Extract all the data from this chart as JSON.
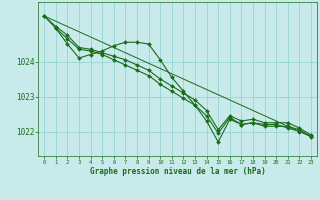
{
  "xlabel": "Graphe pression niveau de la mer (hPa)",
  "background_color": "#c8eaea",
  "grid_color": "#8ecece",
  "line_color": "#1a6b1a",
  "ylim": [
    1021.3,
    1025.7
  ],
  "xlim": [
    -0.5,
    23.5
  ],
  "yticks": [
    1022,
    1023,
    1024
  ],
  "xticks": [
    0,
    1,
    2,
    3,
    4,
    5,
    6,
    7,
    8,
    9,
    10,
    11,
    12,
    13,
    14,
    15,
    16,
    17,
    18,
    19,
    20,
    21,
    22,
    23
  ],
  "series": [
    {
      "x": [
        0,
        1,
        2,
        3,
        4,
        5,
        6,
        7,
        8,
        9,
        10,
        11,
        12,
        13,
        14,
        15,
        16,
        17,
        18,
        19,
        20,
        21,
        22,
        23
      ],
      "y": [
        1025.3,
        1025.0,
        1024.75,
        1024.4,
        1024.35,
        1024.25,
        1024.15,
        1024.05,
        1023.9,
        1023.75,
        1023.5,
        1023.3,
        1023.1,
        1022.9,
        1022.6,
        1022.05,
        1022.45,
        1022.3,
        1022.35,
        1022.25,
        1022.25,
        1022.25,
        1022.1,
        1021.9
      ],
      "marker": "D",
      "markersize": 2.0,
      "linewidth": 0.8
    },
    {
      "x": [
        0,
        1,
        2,
        3,
        4,
        5,
        6,
        7,
        8,
        9,
        10,
        11,
        12,
        13,
        14,
        15,
        16,
        17,
        18,
        19,
        20,
        21,
        22,
        23
      ],
      "y": [
        1025.3,
        1024.95,
        1024.65,
        1024.35,
        1024.3,
        1024.2,
        1024.05,
        1023.9,
        1023.75,
        1023.6,
        1023.35,
        1023.15,
        1022.95,
        1022.75,
        1022.45,
        1021.95,
        1022.4,
        1022.2,
        1022.25,
        1022.15,
        1022.15,
        1022.15,
        1022.05,
        1021.85
      ],
      "marker": "D",
      "markersize": 2.0,
      "linewidth": 0.8
    },
    {
      "x": [
        1,
        2,
        3,
        4,
        5,
        6,
        7,
        8,
        9,
        10,
        11,
        12,
        13,
        14,
        15,
        16,
        17,
        18,
        19,
        20,
        21,
        22,
        23
      ],
      "y": [
        1024.95,
        1024.5,
        1024.1,
        1024.2,
        1024.3,
        1024.45,
        1024.55,
        1024.55,
        1024.5,
        1024.05,
        1023.55,
        1023.15,
        1022.75,
        1022.3,
        1021.7,
        1022.35,
        1022.2,
        1022.25,
        1022.2,
        1022.2,
        1022.1,
        1022.0,
        1021.88
      ],
      "marker": "D",
      "markersize": 2.0,
      "linewidth": 0.8
    },
    {
      "x": [
        0,
        23
      ],
      "y": [
        1025.3,
        1021.85
      ],
      "marker": null,
      "linewidth": 0.7
    }
  ]
}
